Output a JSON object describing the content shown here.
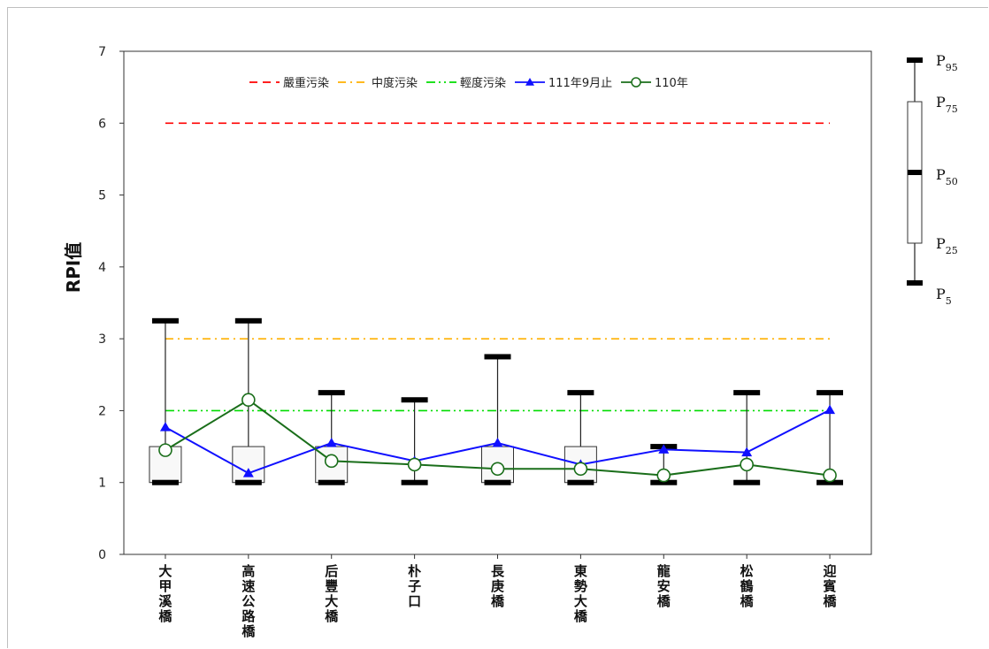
{
  "chart_data": {
    "type": "box",
    "ylabel": "RPI值",
    "xlabel": "",
    "ylim": [
      0,
      7
    ],
    "yticks": [
      "0",
      "1",
      "2",
      "3",
      "4",
      "5",
      "6",
      "7"
    ],
    "categories": [
      "大甲溪橋",
      "高速公路橋",
      "后豐大橋",
      "朴子口",
      "長庚橋",
      "東勢大橋",
      "龍安橋",
      "松鶴橋",
      "迎賓橋"
    ],
    "boxes": [
      {
        "p5": 1.0,
        "p25": 1.0,
        "p50": 1.0,
        "p75": 1.5,
        "p95": 3.25
      },
      {
        "p5": 1.0,
        "p25": 1.0,
        "p50": 1.0,
        "p75": 1.5,
        "p95": 3.25
      },
      {
        "p5": 1.0,
        "p25": 1.0,
        "p50": 1.0,
        "p75": 1.5,
        "p95": 2.25
      },
      {
        "p5": 1.0,
        "p25": 1.0,
        "p50": 1.0,
        "p75": 1.0,
        "p95": 2.15
      },
      {
        "p5": 1.0,
        "p25": 1.0,
        "p50": 1.0,
        "p75": 1.5,
        "p95": 2.75
      },
      {
        "p5": 1.0,
        "p25": 1.0,
        "p50": 1.0,
        "p75": 1.5,
        "p95": 2.25
      },
      {
        "p5": 1.0,
        "p25": 1.0,
        "p50": 1.0,
        "p75": 1.0,
        "p95": 1.5
      },
      {
        "p5": 1.0,
        "p25": 1.0,
        "p50": 1.0,
        "p75": 1.0,
        "p95": 2.25
      },
      {
        "p5": 1.0,
        "p25": 1.0,
        "p50": 1.0,
        "p75": 1.0,
        "p95": 2.25
      }
    ],
    "reference_lines": [
      {
        "name": "嚴重污染",
        "value": 6,
        "color": "#ff0000",
        "style": "dash"
      },
      {
        "name": "中度污染",
        "value": 3,
        "color": "#ffb000",
        "style": "dashdot"
      },
      {
        "name": "輕度污染",
        "value": 2,
        "color": "#00dd00",
        "style": "dashdotdot"
      }
    ],
    "series": [
      {
        "name": "111年9月止",
        "color": "#1010ff",
        "marker": "triangle",
        "values": [
          1.77,
          1.13,
          1.55,
          1.3,
          1.55,
          1.25,
          1.46,
          1.42,
          2.01
        ]
      },
      {
        "name": "110年",
        "color": "#1a6e1a",
        "marker": "circle",
        "values": [
          1.45,
          2.15,
          1.3,
          1.25,
          1.19,
          1.19,
          1.1,
          1.25,
          1.1
        ]
      }
    ],
    "legend_position": "top",
    "grid": false
  },
  "percentile_key": {
    "labels": [
      {
        "base": "P",
        "sub": "95"
      },
      {
        "base": "P",
        "sub": "75"
      },
      {
        "base": "P",
        "sub": "50"
      },
      {
        "base": "P",
        "sub": "25"
      },
      {
        "base": "P",
        "sub": "5"
      }
    ]
  }
}
